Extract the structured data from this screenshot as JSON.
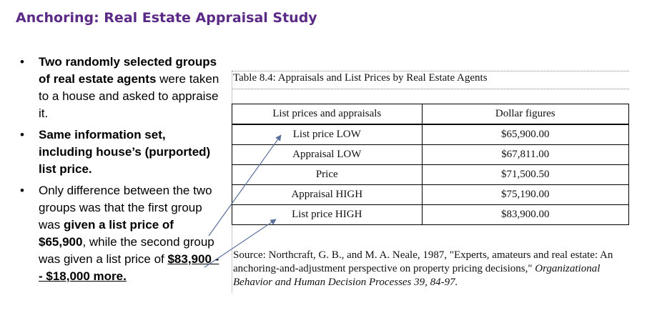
{
  "title": "Anchoring: Real Estate Appraisal Study",
  "bullets": [
    {
      "b1": "Two randomly selected groups of real estate agents",
      "n1": " were taken to a house and asked to appraise it."
    },
    {
      "b1": "Same information set, including house’s (purported) list price."
    },
    {
      "n1": "Only difference between the two groups was that the first group was ",
      "b1": "given a list price of $65,900",
      "n2": ", while the second group was given a list price of ",
      "bu": "$83,900 -- $18,000 more."
    }
  ],
  "table": {
    "caption": "Table 8.4: Appraisals and List Prices by Real Estate Agents",
    "headers": [
      "List prices and appraisals",
      "Dollar figures"
    ],
    "rows": [
      [
        "List price LOW",
        "$65,900.00"
      ],
      [
        "Appraisal LOW",
        "$67,811.00"
      ],
      [
        "Price",
        "$71,500.50"
      ],
      [
        "Appraisal HIGH",
        "$75,190.00"
      ],
      [
        "List price HIGH",
        "$83,900.00"
      ]
    ]
  },
  "source": {
    "text": "Source: Northcraft, G. B., and M. A. Neale, 1987, \"Experts, amateurs and real estate: An anchoring-and-adjustment perspective on property pricing decisions,\"",
    "journal": "Organizational Behavior and Human Decision Processes 39, 84-97."
  }
}
